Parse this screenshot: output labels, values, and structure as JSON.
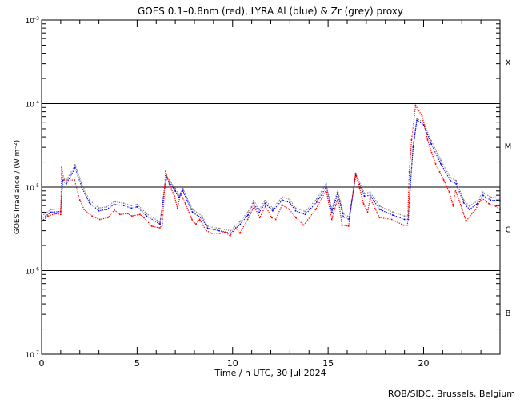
{
  "chart_data": {
    "type": "line",
    "title": "GOES 0.1–0.8nm (red), LYRA Al (blue) & Zr (grey) proxy",
    "xlabel": "Time / h UTC, 30 Jul 2024",
    "ylabel": "GOES Irradiance / (W m⁻²)",
    "xlim": [
      0,
      24
    ],
    "ylim": [
      1e-07,
      0.001
    ],
    "yscale": "log",
    "x_ticks": [
      0,
      5,
      10,
      15,
      20
    ],
    "y_ticks": [
      {
        "base": "10",
        "exp": "-7",
        "value": 1e-07
      },
      {
        "base": "10",
        "exp": "-6",
        "value": 1e-06
      },
      {
        "base": "10",
        "exp": "-5",
        "value": 1e-05
      },
      {
        "base": "10",
        "exp": "-4",
        "value": 0.0001
      },
      {
        "base": "10",
        "exp": "-3",
        "value": 0.001
      }
    ],
    "reference_lines": [
      1e-06,
      1e-05,
      0.0001
    ],
    "flare_classes": [
      {
        "label": "X",
        "value": 0.000316
      },
      {
        "label": "M",
        "value": 3.16e-05
      },
      {
        "label": "C",
        "value": 3.16e-06
      },
      {
        "label": "B",
        "value": 3.16e-07
      }
    ],
    "series": [
      {
        "name": "LYRA Zr proxy",
        "color": "#808080",
        "points": [
          [
            0,
            4.5e-06
          ],
          [
            0.5,
            5.4e-06
          ],
          [
            1.0,
            5.5e-06
          ],
          [
            1.1,
            1.3e-05
          ],
          [
            1.3,
            1.2e-05
          ],
          [
            1.75,
            1.85e-05
          ],
          [
            2.1,
            1.1e-05
          ],
          [
            2.5,
            7e-06
          ],
          [
            3.0,
            5.6e-06
          ],
          [
            3.4,
            5.8e-06
          ],
          [
            3.8,
            6.7e-06
          ],
          [
            4.3,
            6.4e-06
          ],
          [
            4.7,
            6e-06
          ],
          [
            5.0,
            6.2e-06
          ],
          [
            5.5,
            4.8e-06
          ],
          [
            6.2,
            3.8e-06
          ],
          [
            6.45,
            1.05e-05
          ],
          [
            6.55,
            1.35e-05
          ],
          [
            7.0,
            9.6e-06
          ],
          [
            7.2,
            8e-06
          ],
          [
            7.4,
            9.6e-06
          ],
          [
            7.9,
            5.4e-06
          ],
          [
            8.4,
            4.5e-06
          ],
          [
            8.7,
            3.4e-06
          ],
          [
            9.3,
            3.2e-06
          ],
          [
            9.9,
            3e-06
          ],
          [
            10.4,
            3.9e-06
          ],
          [
            10.8,
            5e-06
          ],
          [
            11.1,
            6.9e-06
          ],
          [
            11.4,
            5.4e-06
          ],
          [
            11.7,
            6.9e-06
          ],
          [
            12.1,
            5.6e-06
          ],
          [
            12.6,
            7.6e-06
          ],
          [
            13.0,
            7.1e-06
          ],
          [
            13.3,
            5.6e-06
          ],
          [
            13.8,
            5.1e-06
          ],
          [
            14.4,
            7.2e-06
          ],
          [
            14.9,
            1.1e-05
          ],
          [
            15.2,
            5.4e-06
          ],
          [
            15.5,
            9.2e-06
          ],
          [
            15.8,
            4.8e-06
          ],
          [
            16.1,
            4.4e-06
          ],
          [
            16.45,
            1.45e-05
          ],
          [
            16.9,
            8.4e-06
          ],
          [
            17.2,
            8.7e-06
          ],
          [
            17.7,
            5.9e-06
          ],
          [
            18.4,
            5e-06
          ],
          [
            19.0,
            4.5e-06
          ],
          [
            19.2,
            4.5e-06
          ],
          [
            19.3,
            1.05e-05
          ],
          [
            19.45,
            3.1e-05
          ],
          [
            19.65,
            6.6e-05
          ],
          [
            20.0,
            6e-05
          ],
          [
            20.4,
            3.6e-05
          ],
          [
            20.9,
            2.1e-05
          ],
          [
            21.4,
            1.3e-05
          ],
          [
            21.7,
            1.2e-05
          ],
          [
            22.1,
            7e-06
          ],
          [
            22.4,
            5.9e-06
          ],
          [
            22.8,
            6.8e-06
          ],
          [
            23.1,
            8.7e-06
          ],
          [
            23.5,
            7.6e-06
          ],
          [
            24,
            7.4e-06
          ]
        ]
      },
      {
        "name": "LYRA Al proxy",
        "color": "#0000ff",
        "points": [
          [
            0,
            4.2e-06
          ],
          [
            0.5,
            5e-06
          ],
          [
            1.0,
            5.1e-06
          ],
          [
            1.1,
            1.2e-05
          ],
          [
            1.3,
            1.1e-05
          ],
          [
            1.75,
            1.7e-05
          ],
          [
            2.1,
            1e-05
          ],
          [
            2.5,
            6.5e-06
          ],
          [
            3.0,
            5.2e-06
          ],
          [
            3.4,
            5.4e-06
          ],
          [
            3.8,
            6.2e-06
          ],
          [
            4.3,
            6e-06
          ],
          [
            4.7,
            5.6e-06
          ],
          [
            5.0,
            5.8e-06
          ],
          [
            5.5,
            4.5e-06
          ],
          [
            6.2,
            3.6e-06
          ],
          [
            6.45,
            1e-05
          ],
          [
            6.55,
            1.3e-05
          ],
          [
            7.0,
            9e-06
          ],
          [
            7.2,
            7.5e-06
          ],
          [
            7.4,
            9e-06
          ],
          [
            7.9,
            5e-06
          ],
          [
            8.4,
            4.2e-06
          ],
          [
            8.7,
            3.2e-06
          ],
          [
            9.3,
            3e-06
          ],
          [
            9.9,
            2.8e-06
          ],
          [
            10.4,
            3.6e-06
          ],
          [
            10.8,
            4.6e-06
          ],
          [
            11.1,
            6.4e-06
          ],
          [
            11.4,
            5e-06
          ],
          [
            11.7,
            6.4e-06
          ],
          [
            12.1,
            5.2e-06
          ],
          [
            12.6,
            7e-06
          ],
          [
            13.0,
            6.5e-06
          ],
          [
            13.3,
            5.2e-06
          ],
          [
            13.8,
            4.7e-06
          ],
          [
            14.4,
            6.6e-06
          ],
          [
            14.9,
            1e-05
          ],
          [
            15.2,
            5e-06
          ],
          [
            15.5,
            8.5e-06
          ],
          [
            15.8,
            4.4e-06
          ],
          [
            16.1,
            4.1e-06
          ],
          [
            16.45,
            1.4e-05
          ],
          [
            16.9,
            7.8e-06
          ],
          [
            17.2,
            8e-06
          ],
          [
            17.7,
            5.4e-06
          ],
          [
            18.4,
            4.6e-06
          ],
          [
            19.0,
            4.1e-06
          ],
          [
            19.2,
            4.1e-06
          ],
          [
            19.3,
            1e-05
          ],
          [
            19.45,
            3e-05
          ],
          [
            19.65,
            6.3e-05
          ],
          [
            20.0,
            5.6e-05
          ],
          [
            20.4,
            3.3e-05
          ],
          [
            20.9,
            1.9e-05
          ],
          [
            21.4,
            1.2e-05
          ],
          [
            21.7,
            1.1e-05
          ],
          [
            22.1,
            6.5e-06
          ],
          [
            22.4,
            5.4e-06
          ],
          [
            22.8,
            6.3e-06
          ],
          [
            23.1,
            8e-06
          ],
          [
            23.5,
            7e-06
          ],
          [
            24,
            6.8e-06
          ]
        ]
      },
      {
        "name": "GOES 0.1-0.8nm",
        "color": "#ff0000",
        "points": [
          [
            0,
            3.9e-06
          ],
          [
            0.33,
            4.5e-06
          ],
          [
            0.75,
            4.8e-06
          ],
          [
            1.0,
            4.7e-06
          ],
          [
            1.05,
            1.73e-05
          ],
          [
            1.17,
            1.22e-05
          ],
          [
            1.72,
            1.22e-05
          ],
          [
            2.0,
            7e-06
          ],
          [
            2.22,
            5.4e-06
          ],
          [
            2.64,
            4.5e-06
          ],
          [
            3.05,
            4.1e-06
          ],
          [
            3.47,
            4.3e-06
          ],
          [
            3.81,
            5.3e-06
          ],
          [
            4.1,
            4.7e-06
          ],
          [
            4.52,
            4.8e-06
          ],
          [
            4.73,
            4.5e-06
          ],
          [
            5.15,
            4.7e-06
          ],
          [
            5.36,
            4.3e-06
          ],
          [
            5.77,
            3.4e-06
          ],
          [
            6.19,
            3.25e-06
          ],
          [
            6.32,
            3.5e-06
          ],
          [
            6.44,
            1e-05
          ],
          [
            6.49,
            1.55e-05
          ],
          [
            6.69,
            1.09e-05
          ],
          [
            6.95,
            7.85e-06
          ],
          [
            7.11,
            5.6e-06
          ],
          [
            7.28,
            8.4e-06
          ],
          [
            7.53,
            6.3e-06
          ],
          [
            7.87,
            4.1e-06
          ],
          [
            8.08,
            3.6e-06
          ],
          [
            8.28,
            4.1e-06
          ],
          [
            8.62,
            3e-06
          ],
          [
            8.91,
            2.8e-06
          ],
          [
            9.33,
            2.8e-06
          ],
          [
            9.62,
            2.9e-06
          ],
          [
            9.87,
            2.6e-06
          ],
          [
            10.17,
            3.25e-06
          ],
          [
            10.38,
            2.8e-06
          ],
          [
            10.79,
            4.1e-06
          ],
          [
            11.13,
            5.9e-06
          ],
          [
            11.42,
            4.3e-06
          ],
          [
            11.72,
            5.9e-06
          ],
          [
            12.05,
            4.3e-06
          ],
          [
            12.26,
            4.1e-06
          ],
          [
            12.59,
            6.1e-06
          ],
          [
            12.97,
            5.4e-06
          ],
          [
            13.31,
            4.3e-06
          ],
          [
            13.72,
            3.5e-06
          ],
          [
            14.35,
            5.4e-06
          ],
          [
            14.9,
            9.2e-06
          ],
          [
            15.19,
            4.1e-06
          ],
          [
            15.52,
            7.5e-06
          ],
          [
            15.73,
            3.5e-06
          ],
          [
            16.07,
            3.4e-06
          ],
          [
            16.44,
            1.46e-05
          ],
          [
            16.65,
            9.8e-06
          ],
          [
            16.86,
            6.3e-06
          ],
          [
            17.07,
            5.05e-06
          ],
          [
            17.2,
            7.35e-06
          ],
          [
            17.7,
            4.3e-06
          ],
          [
            18.33,
            4.1e-06
          ],
          [
            18.95,
            3.5e-06
          ],
          [
            19.16,
            3.5e-06
          ],
          [
            19.25,
            1.52e-05
          ],
          [
            19.37,
            3.7e-05
          ],
          [
            19.58,
            9.5e-05
          ],
          [
            19.92,
            7.1e-05
          ],
          [
            20.21,
            3.7e-05
          ],
          [
            20.42,
            2.6e-05
          ],
          [
            20.63,
            1.9e-05
          ],
          [
            20.84,
            1.52e-05
          ],
          [
            21.05,
            1.22e-05
          ],
          [
            21.34,
            8.8e-06
          ],
          [
            21.55,
            5.9e-06
          ],
          [
            21.67,
            9.2e-06
          ],
          [
            22.0,
            5.6e-06
          ],
          [
            22.22,
            3.9e-06
          ],
          [
            22.72,
            5.4e-06
          ],
          [
            23.05,
            7.35e-06
          ],
          [
            23.43,
            6.3e-06
          ],
          [
            23.77,
            5.9e-06
          ],
          [
            24,
            5.4e-06
          ]
        ]
      }
    ],
    "grid": false,
    "legend": "none (colours named in title)"
  },
  "footer": "ROB/SIDC, Brussels, Belgium"
}
